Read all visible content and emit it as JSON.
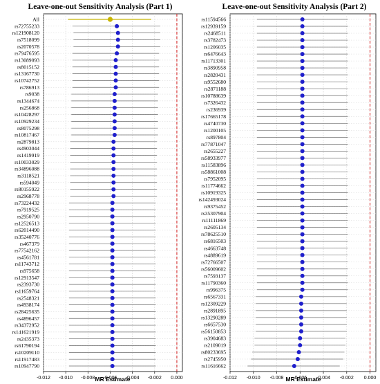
{
  "chart_data": [
    {
      "type": "forest",
      "title": "Leave-one-out Sensitivity Analysis (Part 1)",
      "xlabel": "MR Estimate",
      "xlim": [
        -0.012,
        0.0005
      ],
      "xticks": [
        -0.012,
        -0.01,
        -0.008,
        -0.006,
        -0.004,
        -0.002,
        0.0
      ],
      "xtick_labels": [
        "-0.012",
        "-0.010",
        "-0.008",
        "-0.006",
        "-0.004",
        "-0.002",
        "0.000"
      ],
      "reference_line": 0,
      "point_color": "#1f1fcc",
      "overall_color": "#c8b400",
      "overall": {
        "label": "All",
        "estimate": -0.006,
        "ci": [
          -0.0098,
          -0.0023
        ]
      },
      "items": [
        {
          "label": "rs72755233",
          "estimate": -0.0054,
          "ci": [
            -0.0094,
            -0.0015
          ]
        },
        {
          "label": "rs121908120",
          "estimate": -0.0053,
          "ci": [
            -0.0093,
            -0.0015
          ]
        },
        {
          "label": "rs7518099",
          "estimate": -0.0053,
          "ci": [
            -0.0093,
            -0.0015
          ]
        },
        {
          "label": "rs2070578",
          "estimate": -0.0053,
          "ci": [
            -0.0093,
            -0.0015
          ]
        },
        {
          "label": "rs79476595",
          "estimate": -0.0054,
          "ci": [
            -0.0094,
            -0.0016
          ]
        },
        {
          "label": "rs13089093",
          "estimate": -0.0055,
          "ci": [
            -0.0094,
            -0.0016
          ]
        },
        {
          "label": "rs8015152",
          "estimate": -0.0055,
          "ci": [
            -0.0094,
            -0.0016
          ]
        },
        {
          "label": "rs13167730",
          "estimate": -0.0055,
          "ci": [
            -0.0094,
            -0.0016
          ]
        },
        {
          "label": "rs10742752",
          "estimate": -0.0055,
          "ci": [
            -0.0094,
            -0.0016
          ]
        },
        {
          "label": "rs786913",
          "estimate": -0.0055,
          "ci": [
            -0.0094,
            -0.0016
          ]
        },
        {
          "label": "rs9038",
          "estimate": -0.0056,
          "ci": [
            -0.0095,
            -0.0017
          ]
        },
        {
          "label": "rs1344674",
          "estimate": -0.0056,
          "ci": [
            -0.0095,
            -0.0017
          ]
        },
        {
          "label": "rs256868",
          "estimate": -0.0056,
          "ci": [
            -0.0095,
            -0.0017
          ]
        },
        {
          "label": "rs10428297",
          "estimate": -0.0056,
          "ci": [
            -0.0095,
            -0.0017
          ]
        },
        {
          "label": "rs10929234",
          "estimate": -0.0056,
          "ci": [
            -0.0095,
            -0.0017
          ]
        },
        {
          "label": "rs8075298",
          "estimate": -0.0056,
          "ci": [
            -0.0095,
            -0.0017
          ]
        },
        {
          "label": "rs10817467",
          "estimate": -0.0056,
          "ci": [
            -0.0095,
            -0.0017
          ]
        },
        {
          "label": "rs2879813",
          "estimate": -0.0057,
          "ci": [
            -0.0096,
            -0.0018
          ]
        },
        {
          "label": "rs4903044",
          "estimate": -0.0057,
          "ci": [
            -0.0096,
            -0.0018
          ]
        },
        {
          "label": "rs1419919",
          "estimate": -0.0057,
          "ci": [
            -0.0096,
            -0.0018
          ]
        },
        {
          "label": "rs10033029",
          "estimate": -0.0057,
          "ci": [
            -0.0096,
            -0.0018
          ]
        },
        {
          "label": "rs34896088",
          "estimate": -0.0057,
          "ci": [
            -0.0096,
            -0.0018
          ]
        },
        {
          "label": "rs3118521",
          "estimate": -0.0057,
          "ci": [
            -0.0096,
            -0.0018
          ]
        },
        {
          "label": "rs594049",
          "estimate": -0.0057,
          "ci": [
            -0.0096,
            -0.0018
          ]
        },
        {
          "label": "rs80155922",
          "estimate": -0.0057,
          "ci": [
            -0.0096,
            -0.0018
          ]
        },
        {
          "label": "rs2968778",
          "estimate": -0.0057,
          "ci": [
            -0.0096,
            -0.0018
          ]
        },
        {
          "label": "rs73224432",
          "estimate": -0.0058,
          "ci": [
            -0.0097,
            -0.0019
          ]
        },
        {
          "label": "rs7919525",
          "estimate": -0.0058,
          "ci": [
            -0.0097,
            -0.0019
          ]
        },
        {
          "label": "rs2950790",
          "estimate": -0.0058,
          "ci": [
            -0.0097,
            -0.0019
          ]
        },
        {
          "label": "rs12526513",
          "estimate": -0.0058,
          "ci": [
            -0.0097,
            -0.0019
          ]
        },
        {
          "label": "rs62014490",
          "estimate": -0.0058,
          "ci": [
            -0.0097,
            -0.0019
          ]
        },
        {
          "label": "rs35240776",
          "estimate": -0.0058,
          "ci": [
            -0.0097,
            -0.0019
          ]
        },
        {
          "label": "rs467379",
          "estimate": -0.0058,
          "ci": [
            -0.0097,
            -0.0019
          ]
        },
        {
          "label": "rs77542162",
          "estimate": -0.0058,
          "ci": [
            -0.0097,
            -0.0019
          ]
        },
        {
          "label": "rs4561781",
          "estimate": -0.0058,
          "ci": [
            -0.0097,
            -0.0019
          ]
        },
        {
          "label": "rs11743712",
          "estimate": -0.0058,
          "ci": [
            -0.0097,
            -0.0019
          ]
        },
        {
          "label": "rs975658",
          "estimate": -0.0058,
          "ci": [
            -0.0097,
            -0.0019
          ]
        },
        {
          "label": "rs12913547",
          "estimate": -0.0058,
          "ci": [
            -0.0097,
            -0.0019
          ]
        },
        {
          "label": "rs2393730",
          "estimate": -0.0058,
          "ci": [
            -0.0097,
            -0.0019
          ]
        },
        {
          "label": "rs11659764",
          "estimate": -0.0058,
          "ci": [
            -0.0097,
            -0.0019
          ]
        },
        {
          "label": "rs2548321",
          "estimate": -0.0058,
          "ci": [
            -0.0097,
            -0.0019
          ]
        },
        {
          "label": "rs4938174",
          "estimate": -0.0058,
          "ci": [
            -0.0097,
            -0.0019
          ]
        },
        {
          "label": "rs28425635",
          "estimate": -0.0058,
          "ci": [
            -0.0097,
            -0.0019
          ]
        },
        {
          "label": "rs4896457",
          "estimate": -0.0058,
          "ci": [
            -0.0097,
            -0.0019
          ]
        },
        {
          "label": "rs34372952",
          "estimate": -0.0058,
          "ci": [
            -0.0097,
            -0.0019
          ]
        },
        {
          "label": "rs141621919",
          "estimate": -0.0058,
          "ci": [
            -0.0097,
            -0.0019
          ]
        },
        {
          "label": "rs2435373",
          "estimate": -0.0058,
          "ci": [
            -0.0097,
            -0.0019
          ]
        },
        {
          "label": "rs61790194",
          "estimate": -0.0058,
          "ci": [
            -0.0097,
            -0.0019
          ]
        },
        {
          "label": "rs10209110",
          "estimate": -0.0058,
          "ci": [
            -0.0097,
            -0.0019
          ]
        },
        {
          "label": "rs11917483",
          "estimate": -0.0058,
          "ci": [
            -0.0097,
            -0.0019
          ]
        },
        {
          "label": "rs10947790",
          "estimate": -0.0058,
          "ci": [
            -0.0097,
            -0.0019
          ]
        }
      ]
    },
    {
      "type": "forest",
      "title": "Leave-one-out Sensitivity Analysis (Part 2)",
      "xlabel": "MR Estimate",
      "xlim": [
        -0.012,
        0.0005
      ],
      "xticks": [
        -0.012,
        -0.01,
        -0.008,
        -0.006,
        -0.004,
        -0.002,
        0.0
      ],
      "xtick_labels": [
        "-0.012",
        "-0.010",
        "-0.008",
        "-0.006",
        "-0.004",
        "-0.002",
        "0.000"
      ],
      "reference_line": 0,
      "point_color": "#1f1fcc",
      "items": [
        {
          "label": "rs11594566",
          "estimate": -0.0058,
          "ci": [
            -0.0097,
            -0.0019
          ]
        },
        {
          "label": "rs12939159",
          "estimate": -0.0058,
          "ci": [
            -0.0097,
            -0.0019
          ]
        },
        {
          "label": "rs2468511",
          "estimate": -0.0058,
          "ci": [
            -0.0097,
            -0.0019
          ]
        },
        {
          "label": "rs3782473",
          "estimate": -0.0058,
          "ci": [
            -0.0097,
            -0.0019
          ]
        },
        {
          "label": "rs1206035",
          "estimate": -0.0058,
          "ci": [
            -0.0097,
            -0.0019
          ]
        },
        {
          "label": "rs6476643",
          "estimate": -0.0058,
          "ci": [
            -0.0097,
            -0.0019
          ]
        },
        {
          "label": "rs11713301",
          "estimate": -0.0058,
          "ci": [
            -0.0097,
            -0.0019
          ]
        },
        {
          "label": "rs3890958",
          "estimate": -0.0058,
          "ci": [
            -0.0097,
            -0.0019
          ]
        },
        {
          "label": "rs2820431",
          "estimate": -0.0058,
          "ci": [
            -0.0097,
            -0.0019
          ]
        },
        {
          "label": "rs9552680",
          "estimate": -0.0058,
          "ci": [
            -0.0097,
            -0.0019
          ]
        },
        {
          "label": "rs2871188",
          "estimate": -0.0058,
          "ci": [
            -0.0097,
            -0.0019
          ]
        },
        {
          "label": "rs10788639",
          "estimate": -0.0058,
          "ci": [
            -0.0097,
            -0.0019
          ]
        },
        {
          "label": "rs7326432",
          "estimate": -0.0058,
          "ci": [
            -0.0097,
            -0.0019
          ]
        },
        {
          "label": "rs236939",
          "estimate": -0.0058,
          "ci": [
            -0.0097,
            -0.0019
          ]
        },
        {
          "label": "rs17665178",
          "estimate": -0.0058,
          "ci": [
            -0.0097,
            -0.0019
          ]
        },
        {
          "label": "rs4740730",
          "estimate": -0.0058,
          "ci": [
            -0.0097,
            -0.0019
          ]
        },
        {
          "label": "rs1200105",
          "estimate": -0.0058,
          "ci": [
            -0.0097,
            -0.0019
          ]
        },
        {
          "label": "rs897804",
          "estimate": -0.0058,
          "ci": [
            -0.0097,
            -0.0019
          ]
        },
        {
          "label": "rs77871047",
          "estimate": -0.0058,
          "ci": [
            -0.0097,
            -0.0019
          ]
        },
        {
          "label": "rs2655227",
          "estimate": -0.0058,
          "ci": [
            -0.0097,
            -0.0019
          ]
        },
        {
          "label": "rs58933977",
          "estimate": -0.0058,
          "ci": [
            -0.0097,
            -0.0019
          ]
        },
        {
          "label": "rs11583896",
          "estimate": -0.0058,
          "ci": [
            -0.0097,
            -0.0019
          ]
        },
        {
          "label": "rs58861008",
          "estimate": -0.0058,
          "ci": [
            -0.0097,
            -0.0019
          ]
        },
        {
          "label": "rs7952095",
          "estimate": -0.0058,
          "ci": [
            -0.0097,
            -0.0019
          ]
        },
        {
          "label": "rs11774662",
          "estimate": -0.0058,
          "ci": [
            -0.0097,
            -0.0019
          ]
        },
        {
          "label": "rs10919325",
          "estimate": -0.0058,
          "ci": [
            -0.0097,
            -0.0019
          ]
        },
        {
          "label": "rs142493024",
          "estimate": -0.0058,
          "ci": [
            -0.0097,
            -0.0019
          ]
        },
        {
          "label": "rs9375452",
          "estimate": -0.0058,
          "ci": [
            -0.0097,
            -0.0019
          ]
        },
        {
          "label": "rs35307904",
          "estimate": -0.0058,
          "ci": [
            -0.0097,
            -0.0019
          ]
        },
        {
          "label": "rs11111869",
          "estimate": -0.0058,
          "ci": [
            -0.0097,
            -0.0019
          ]
        },
        {
          "label": "rs2605134",
          "estimate": -0.0058,
          "ci": [
            -0.0097,
            -0.0019
          ]
        },
        {
          "label": "rs78625510",
          "estimate": -0.0058,
          "ci": [
            -0.0097,
            -0.0019
          ]
        },
        {
          "label": "rs6816503",
          "estimate": -0.0058,
          "ci": [
            -0.0097,
            -0.0019
          ]
        },
        {
          "label": "rs4663748",
          "estimate": -0.0058,
          "ci": [
            -0.0097,
            -0.0019
          ]
        },
        {
          "label": "rs4889619",
          "estimate": -0.0058,
          "ci": [
            -0.0097,
            -0.0019
          ]
        },
        {
          "label": "rs72766507",
          "estimate": -0.0058,
          "ci": [
            -0.0097,
            -0.0019
          ]
        },
        {
          "label": "rs56009602",
          "estimate": -0.0058,
          "ci": [
            -0.0097,
            -0.0019
          ]
        },
        {
          "label": "rs7593137",
          "estimate": -0.0058,
          "ci": [
            -0.0097,
            -0.0019
          ]
        },
        {
          "label": "rs11790360",
          "estimate": -0.0058,
          "ci": [
            -0.0097,
            -0.0019
          ]
        },
        {
          "label": "rs996375",
          "estimate": -0.0058,
          "ci": [
            -0.0097,
            -0.0019
          ]
        },
        {
          "label": "rs6567331",
          "estimate": -0.0059,
          "ci": [
            -0.0098,
            -0.002
          ]
        },
        {
          "label": "rs12309229",
          "estimate": -0.0059,
          "ci": [
            -0.0098,
            -0.002
          ]
        },
        {
          "label": "rs2891895",
          "estimate": -0.0059,
          "ci": [
            -0.0098,
            -0.002
          ]
        },
        {
          "label": "rs13290289",
          "estimate": -0.0059,
          "ci": [
            -0.0098,
            -0.002
          ]
        },
        {
          "label": "rs6657530",
          "estimate": -0.0059,
          "ci": [
            -0.0098,
            -0.002
          ]
        },
        {
          "label": "rs56150853",
          "estimate": -0.0059,
          "ci": [
            -0.0098,
            -0.002
          ]
        },
        {
          "label": "rs3904683",
          "estimate": -0.006,
          "ci": [
            -0.0099,
            -0.0021
          ]
        },
        {
          "label": "rs2109019",
          "estimate": -0.006,
          "ci": [
            -0.0099,
            -0.0021
          ]
        },
        {
          "label": "rs80233695",
          "estimate": -0.0061,
          "ci": [
            -0.0101,
            -0.0022
          ]
        },
        {
          "label": "rs2745950",
          "estimate": -0.0062,
          "ci": [
            -0.0102,
            -0.0023
          ]
        },
        {
          "label": "rs11616662",
          "estimate": -0.0065,
          "ci": [
            -0.0105,
            -0.0026
          ]
        }
      ]
    }
  ]
}
